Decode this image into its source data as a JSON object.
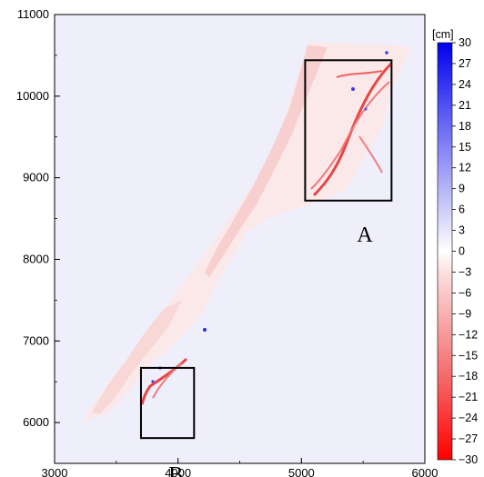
{
  "map": {
    "x_axis": {
      "range": [
        3000,
        6000
      ],
      "ticks": [
        "3000",
        "4000",
        "5000",
        "6000"
      ]
    },
    "y_axis": {
      "range": [
        5500,
        11000
      ],
      "ticks": [
        "6000",
        "7000",
        "8000",
        "9000",
        "10000",
        "11000"
      ]
    },
    "background_color": "#efeefb",
    "regions": [
      {
        "label": "A",
        "x_range": [
          5030,
          5730
        ],
        "y_range": [
          8720,
          10440
        ]
      },
      {
        "label": "B",
        "x_range": [
          3700,
          4130
        ],
        "y_range": [
          5810,
          6670
        ]
      }
    ]
  },
  "colorbar": {
    "unit": "[cm]",
    "range": [
      -30,
      30
    ],
    "ticks": [
      "30",
      "27",
      "24",
      "21",
      "18",
      "15",
      "12",
      "9",
      "6",
      "3",
      "0",
      "−3",
      "−6",
      "−9",
      "−12",
      "−15",
      "−18",
      "−21",
      "−24",
      "−27",
      "−30"
    ],
    "positive_color": "#0000ee",
    "negative_color": "#ff0000",
    "zero_color": "#ffffff"
  },
  "chart_data": {
    "type": "heatmap",
    "title": "",
    "xlabel": "",
    "ylabel": "",
    "xlim": [
      3000,
      6000
    ],
    "ylim": [
      5500,
      11000
    ],
    "value_range": [
      -30,
      30
    ],
    "unit": "[cm]"
  }
}
